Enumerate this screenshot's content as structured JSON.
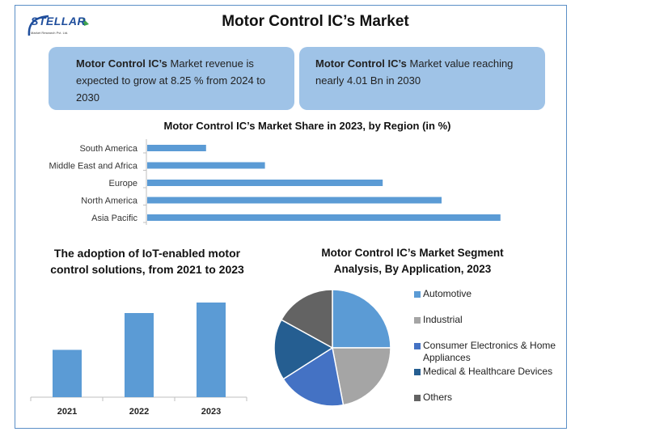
{
  "brand": {
    "name": "STELLAR",
    "tagline": "Market Research Pvt. Ltd."
  },
  "title": "Motor Control IC’s Market",
  "info_left": {
    "bold": "Motor Control IC’s",
    "text": " Market revenue is expected to grow at 8.25 % from 2024 to 2030"
  },
  "info_right": {
    "bold": "Motor Control IC’s",
    "text": " Market value reaching nearly 4.01 Bn in 2030"
  },
  "colors": {
    "bar": "#5b9bd5",
    "frame": "#5b8fc7",
    "info_bg": "#9fc3e7"
  },
  "chart_data": [
    {
      "type": "bar",
      "orientation": "horizontal",
      "title": "Motor Control IC’s Market Share in 2023, by Region (in %)",
      "categories": [
        "South America",
        "Middle East and Africa",
        "Europe",
        "North America",
        "Asia Pacific"
      ],
      "values": [
        4,
        8,
        16,
        20,
        24
      ],
      "xlim": [
        0,
        25
      ],
      "grid": false
    },
    {
      "type": "bar",
      "title": "The adoption of IoT-enabled motor control solutions, from 2021 to 2023",
      "categories": [
        "2021",
        "2022",
        "2023"
      ],
      "values": [
        45,
        80,
        90
      ],
      "ylim": [
        0,
        100
      ],
      "grid": false
    },
    {
      "type": "pie",
      "title": "Motor Control IC’s Market Segment Analysis, By Application, 2023",
      "legend_position": "right",
      "slices": [
        {
          "label": "Automotive",
          "value": 25,
          "color": "#5b9bd5"
        },
        {
          "label": "Industrial",
          "value": 22,
          "color": "#a5a5a5"
        },
        {
          "label": "Consumer Electronics & Home Appliances",
          "value": 19,
          "color": "#4472c4"
        },
        {
          "label": "Medical & Healthcare Devices",
          "value": 17,
          "color": "#255e91"
        },
        {
          "label": "Others",
          "value": 17,
          "color": "#636363"
        }
      ]
    }
  ]
}
